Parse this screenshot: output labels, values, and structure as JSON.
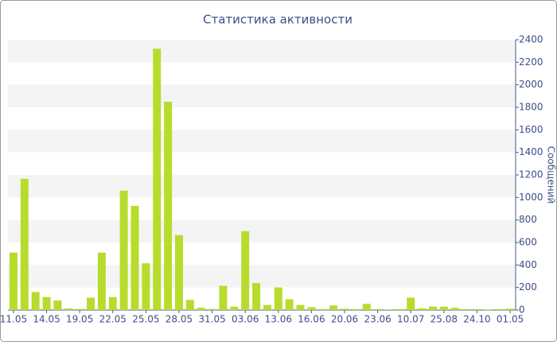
{
  "chart_data": {
    "type": "bar",
    "title": "Статистика активности",
    "y_label": "Сообщений",
    "categories": [
      "11.05",
      null,
      null,
      "14.05",
      null,
      null,
      "19.05",
      null,
      null,
      "22.05",
      null,
      null,
      "25.05",
      null,
      null,
      "28.05",
      null,
      null,
      "31.05",
      null,
      null,
      "03.06",
      null,
      null,
      "13.06",
      null,
      null,
      "16.06",
      null,
      null,
      "20.06",
      null,
      null,
      "23.06",
      null,
      null,
      "10.07",
      null,
      null,
      "25.08",
      null,
      null,
      "24.10",
      null,
      null,
      "01.05"
    ],
    "values": [
      510,
      1165,
      160,
      115,
      85,
      15,
      10,
      110,
      510,
      115,
      1060,
      925,
      415,
      2320,
      1850,
      665,
      90,
      20,
      10,
      215,
      30,
      700,
      240,
      45,
      200,
      95,
      45,
      25,
      8,
      40,
      12,
      8,
      55,
      8,
      5,
      8,
      110,
      15,
      30,
      30,
      20,
      8,
      8,
      5,
      8,
      12
    ],
    "color": "#b8dc2c",
    "ylim": [
      0,
      2400
    ],
    "yticks": [
      0,
      200,
      400,
      600,
      800,
      1000,
      1200,
      1400,
      1600,
      1800,
      2000,
      2200,
      2400
    ],
    "grid": true
  }
}
